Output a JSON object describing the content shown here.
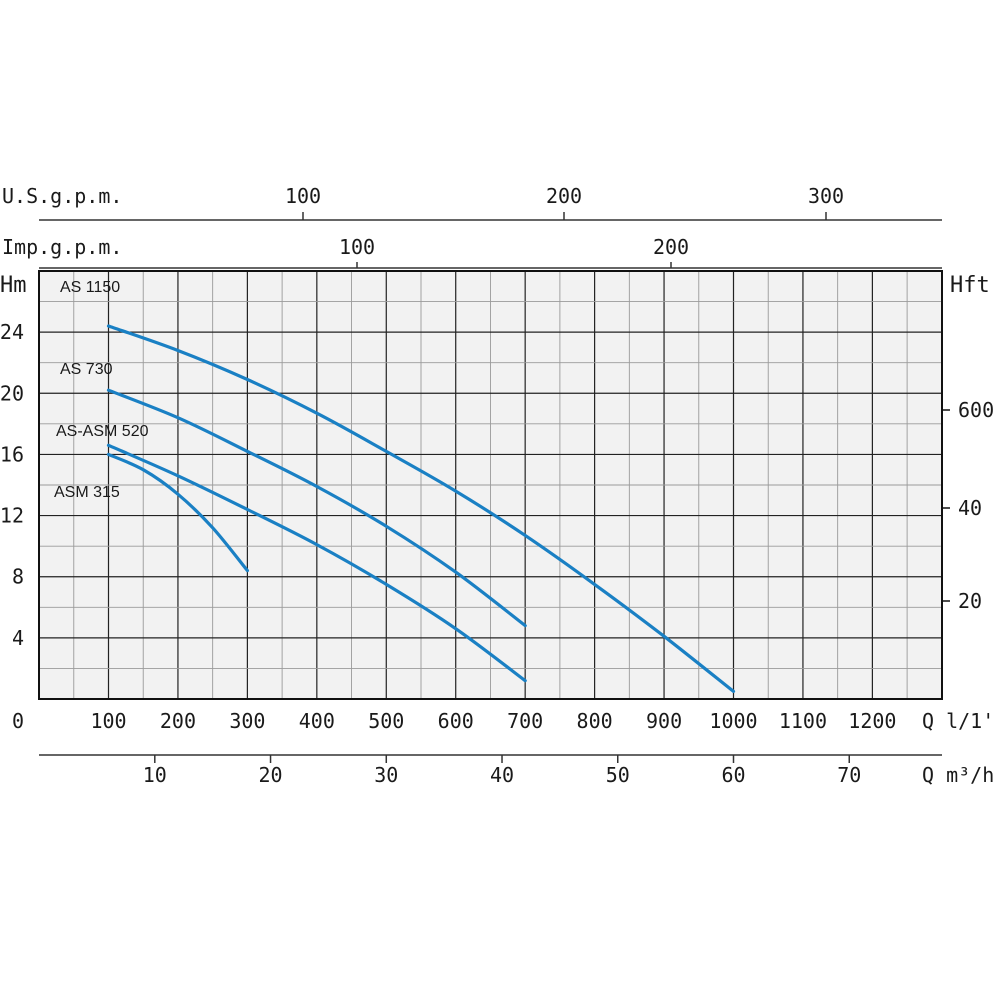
{
  "chart_data": {
    "type": "line",
    "title": "",
    "xlabel": "Q l/1'",
    "ylabel": "Hm",
    "xlim": [
      0,
      1300
    ],
    "ylim": [
      0,
      28
    ],
    "grid": true,
    "x_ticks": [
      "0",
      "100",
      "200",
      "300",
      "400",
      "500",
      "600",
      "700",
      "800",
      "900",
      "1000",
      "1100",
      "1200"
    ],
    "y_ticks": [
      "4",
      "8",
      "12",
      "16",
      "20",
      "24"
    ],
    "right_axis": {
      "label": "Hft",
      "ticks": [
        "20",
        "40",
        "600"
      ]
    },
    "top_axes": [
      {
        "label": "U.S.g.p.m.",
        "ticks": [
          "100",
          "200",
          "300"
        ]
      },
      {
        "label": "Imp.g.p.m.",
        "ticks": [
          "100",
          "200"
        ]
      }
    ],
    "bottom_axis": {
      "label": "Q m³/h",
      "ticks": [
        "10",
        "20",
        "30",
        "40",
        "50",
        "60",
        "70"
      ]
    },
    "line_color": "#1a80c4",
    "series": [
      {
        "name": "AS 1150",
        "x": [
          100,
          200,
          300,
          400,
          500,
          600,
          700,
          800,
          900,
          1000
        ],
        "y": [
          24.4,
          22.8,
          20.9,
          18.7,
          16.2,
          13.6,
          10.7,
          7.5,
          4.1,
          0.5
        ]
      },
      {
        "name": "AS 730",
        "x": [
          100,
          200,
          300,
          400,
          500,
          600,
          700
        ],
        "y": [
          20.2,
          18.4,
          16.2,
          13.9,
          11.3,
          8.3,
          4.8
        ]
      },
      {
        "name": "AS-ASM 520",
        "x": [
          100,
          200,
          300,
          400,
          500,
          600,
          700
        ],
        "y": [
          16.6,
          14.6,
          12.4,
          10.1,
          7.5,
          4.6,
          1.2
        ]
      },
      {
        "name": "ASM 315",
        "x": [
          100,
          150,
          200,
          250,
          300
        ],
        "y": [
          16.0,
          15.0,
          13.4,
          11.2,
          8.4
        ]
      }
    ]
  }
}
